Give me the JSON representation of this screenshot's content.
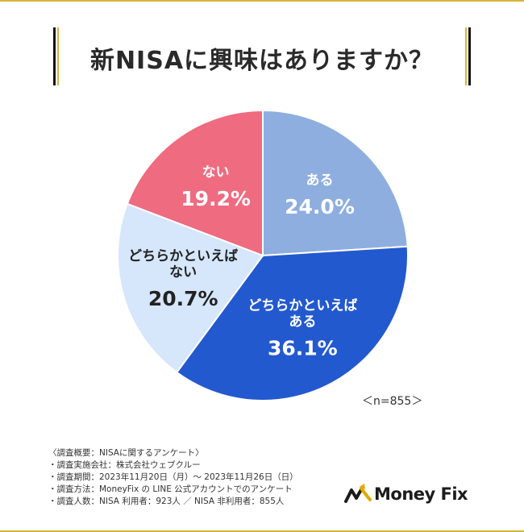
{
  "title": "新NISAに興味はありますか？",
  "chart_data": {
    "type": "pie",
    "start": "12 o'clock, clockwise",
    "slices": [
      {
        "label_lines": [
          "ある"
        ],
        "value": 24.0,
        "value_text": "24.0%",
        "color": "#8eaedf",
        "text_color": "#ffffff"
      },
      {
        "label_lines": [
          "どちらかといえば",
          "ある"
        ],
        "value": 36.1,
        "value_text": "36.1%",
        "color": "#2359cf",
        "text_color": "#ffffff"
      },
      {
        "label_lines": [
          "どちらかといえば",
          "ない"
        ],
        "value": 20.7,
        "value_text": "20.7%",
        "color": "#d6e6fb",
        "text_color": "#222222"
      },
      {
        "label_lines": [
          "ない"
        ],
        "value": 19.2,
        "value_text": "19.2%",
        "color": "#ef6b80",
        "text_color": "#ffffff"
      }
    ]
  },
  "sample_size": "＜n=855＞",
  "notes": [
    "〈調査概要：NISAに関するアンケート〉",
    "・調査実施会社：株式会社ウェブクルー",
    "・調査期間：2023年11月20日（月）〜 2023年11月26日（日）",
    "・調査方法：MoneyFix の LINE 公式アカウントでのアンケート",
    "・調査人数：NISA 利用者：923人 ／ NISA 非利用者：855人"
  ],
  "logo": {
    "text": "Money Fix",
    "mark_color": "#e2a800"
  },
  "frame_color": "#d8b43a"
}
